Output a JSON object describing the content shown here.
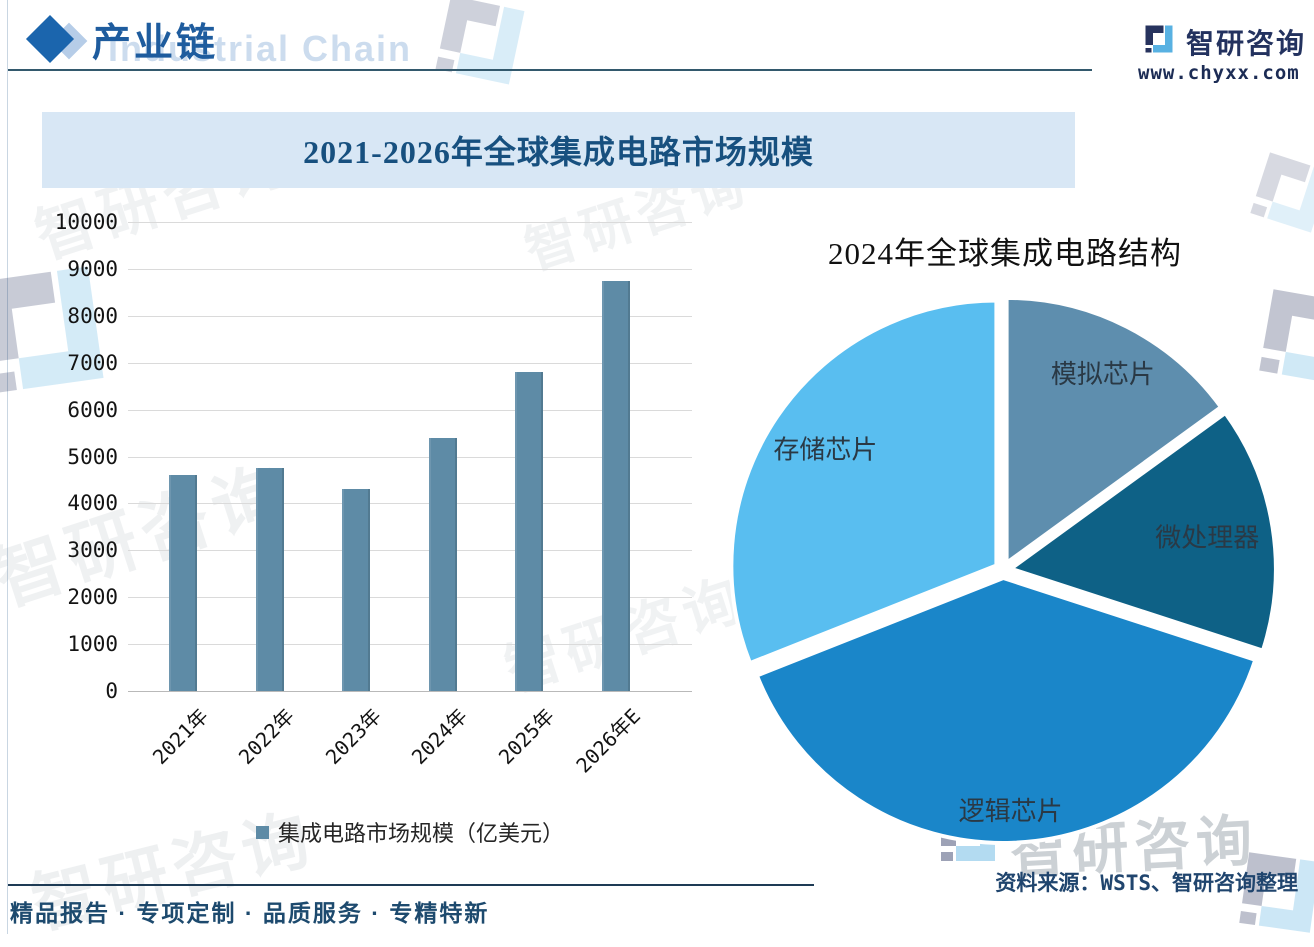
{
  "header": {
    "title": "产业链",
    "watermark_en": "Industrial Chain",
    "brand_name": "智研咨询",
    "brand_url": "www.chyxx.com"
  },
  "chart_data": [
    {
      "type": "bar",
      "title": "2021-2026年全球集成电路市场规模",
      "categories": [
        "2021年",
        "2022年",
        "2023年",
        "2024年",
        "2025年",
        "2026年E"
      ],
      "values": [
        4600,
        4750,
        4300,
        5400,
        6800,
        8740
      ],
      "series_name": "集成电路市场规模（亿美元）",
      "ylim": [
        0,
        10000
      ],
      "ytick_step": 1000,
      "grid": true,
      "bar_color": "#5e8ba6",
      "legend_position": "bottom"
    },
    {
      "type": "pie",
      "title": "2024年全球集成电路结构",
      "unit": "%",
      "start_angle_deg": 0,
      "direction": "clockwise",
      "slices": [
        {
          "label": "模拟芯片",
          "value": 15,
          "color": "#5e8eae"
        },
        {
          "label": "微处理器",
          "value": 15,
          "color": "#0e6186"
        },
        {
          "label": "逻辑芯片",
          "value": 39,
          "color": "#1a86c9"
        },
        {
          "label": "存储芯片",
          "value": 31,
          "color": "#59bef0"
        }
      ]
    }
  ],
  "footer": {
    "tagline": "精品报告 · 专项定制 · 品质服务 · 专精特新",
    "source": "资料来源：WSTS、智研咨询整理"
  },
  "watermarks": {
    "cn": "智研咨询"
  }
}
